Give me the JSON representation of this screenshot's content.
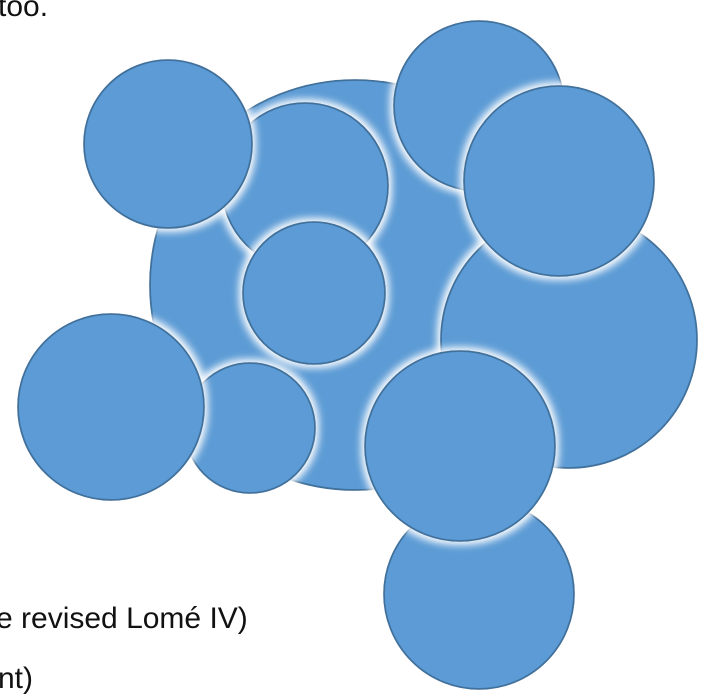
{
  "text_fragments": {
    "top": "too.",
    "middle": "e revised Lomé IV)",
    "bottom": "nt)"
  },
  "diagram": {
    "fill_color": "#5B9BD5",
    "stroke_color": "#41719C",
    "shadow_color": "#ffffff"
  }
}
